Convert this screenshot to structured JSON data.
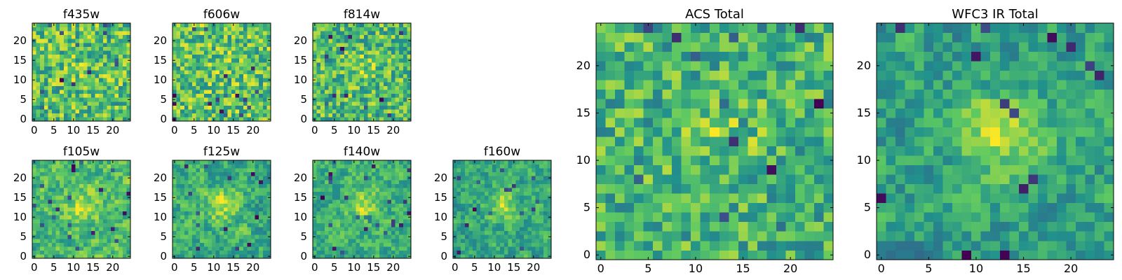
{
  "chart_data": [
    {
      "type": "heatmap",
      "title": "f435w",
      "grid": false,
      "seed": 11,
      "blob": 0.1,
      "smooth": 0,
      "xlim": [
        -0.5,
        24.5
      ],
      "ylim": [
        -0.5,
        24.5
      ],
      "xticks": [
        "0",
        "5",
        "10",
        "15",
        "20"
      ],
      "yticks": [
        "0",
        "5",
        "10",
        "15",
        "20"
      ]
    },
    {
      "type": "heatmap",
      "title": "f606w",
      "grid": false,
      "seed": 23,
      "blob": 0.1,
      "smooth": 0,
      "xlim": [
        -0.5,
        24.5
      ],
      "ylim": [
        -0.5,
        24.5
      ],
      "xticks": [
        "0",
        "5",
        "10",
        "15",
        "20"
      ],
      "yticks": [
        "0",
        "5",
        "10",
        "15",
        "20"
      ]
    },
    {
      "type": "heatmap",
      "title": "f814w",
      "grid": false,
      "seed": 37,
      "blob": 0.2,
      "smooth": 0,
      "xlim": [
        -0.5,
        24.5
      ],
      "ylim": [
        -0.5,
        24.5
      ],
      "xticks": [
        "0",
        "5",
        "10",
        "15",
        "20"
      ],
      "yticks": [
        "0",
        "5",
        "10",
        "15",
        "20"
      ]
    },
    {
      "type": "heatmap",
      "title": "f105w",
      "grid": false,
      "seed": 41,
      "blob": 0.4,
      "smooth": 1,
      "xlim": [
        -0.5,
        24.5
      ],
      "ylim": [
        -0.5,
        24.5
      ],
      "xticks": [
        "0",
        "5",
        "10",
        "15",
        "20"
      ],
      "yticks": [
        "0",
        "5",
        "10",
        "15",
        "20"
      ]
    },
    {
      "type": "heatmap",
      "title": "f125w",
      "grid": false,
      "seed": 53,
      "blob": 0.45,
      "smooth": 1,
      "xlim": [
        -0.5,
        24.5
      ],
      "ylim": [
        -0.5,
        24.5
      ],
      "xticks": [
        "0",
        "5",
        "10",
        "15",
        "20"
      ],
      "yticks": [
        "0",
        "5",
        "10",
        "15",
        "20"
      ]
    },
    {
      "type": "heatmap",
      "title": "f140w",
      "grid": false,
      "seed": 67,
      "blob": 0.45,
      "smooth": 1,
      "xlim": [
        -0.5,
        24.5
      ],
      "ylim": [
        -0.5,
        24.5
      ],
      "xticks": [
        "0",
        "5",
        "10",
        "15",
        "20"
      ],
      "yticks": [
        "0",
        "5",
        "10",
        "15",
        "20"
      ]
    },
    {
      "type": "heatmap",
      "title": "f160w",
      "grid": false,
      "seed": 79,
      "blob": 0.5,
      "smooth": 1,
      "xlim": [
        -0.5,
        24.5
      ],
      "ylim": [
        -0.5,
        24.5
      ],
      "xticks": [
        "0",
        "5",
        "10",
        "15",
        "20"
      ],
      "yticks": [
        "0",
        "5",
        "10",
        "15",
        "20"
      ]
    },
    {
      "type": "heatmap",
      "title": "ACS Total",
      "grid": false,
      "seed": 83,
      "blob": 0.3,
      "smooth": 0,
      "xlim": [
        -0.5,
        24.5
      ],
      "ylim": [
        -0.5,
        24.5
      ],
      "xticks": [
        "0",
        "5",
        "10",
        "15",
        "20"
      ],
      "yticks": [
        "0",
        "5",
        "10",
        "15",
        "20"
      ]
    },
    {
      "type": "heatmap",
      "title": "WFC3 IR Total",
      "grid": false,
      "seed": 97,
      "blob": 0.65,
      "smooth": 1,
      "xlim": [
        -0.5,
        24.5
      ],
      "ylim": [
        -0.5,
        24.5
      ],
      "xticks": [
        "0",
        "5",
        "10",
        "15",
        "20"
      ],
      "yticks": [
        "0",
        "5",
        "10",
        "15",
        "20"
      ]
    }
  ],
  "colors": {
    "colormap": [
      "#440154",
      "#3b528b",
      "#21918c",
      "#5ec962",
      "#fde725"
    ],
    "axes": "#000000",
    "background": "#ffffff"
  }
}
